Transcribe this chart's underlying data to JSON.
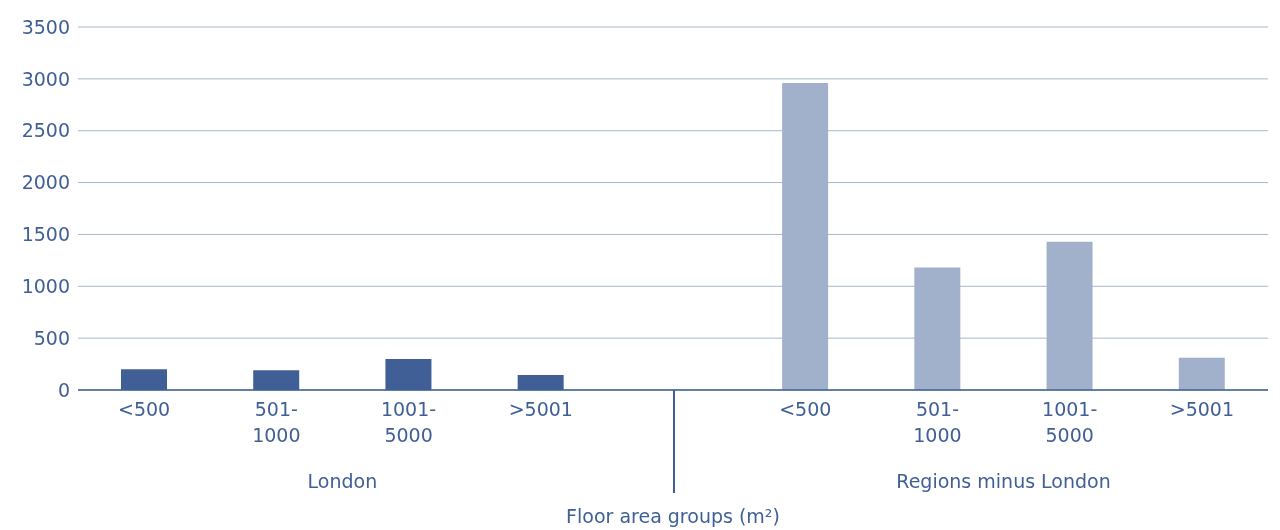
{
  "chart_data": {
    "type": "bar",
    "xlabel": "Floor area groups (m²)",
    "categories": [
      "<500",
      "501-1000",
      "1001-5000",
      ">5001",
      null,
      "<500",
      "501-1000",
      "1001-5000",
      ">5001"
    ],
    "values": [
      200,
      190,
      300,
      145,
      null,
      2960,
      1180,
      1430,
      310
    ],
    "colors": [
      "#3f5f96",
      "#3f5f96",
      "#3f5f96",
      "#3f5f96",
      "#3f5f96",
      "#a2b1cb",
      "#a2b1cb",
      "#a2b1cb",
      "#a2b1cb"
    ],
    "ylim": [
      0,
      3500
    ],
    "yticks": [
      0,
      500,
      1000,
      1500,
      2000,
      2500,
      3000,
      3500
    ],
    "grid": "y",
    "annotations": [
      "London",
      "Regions minus London"
    ]
  }
}
